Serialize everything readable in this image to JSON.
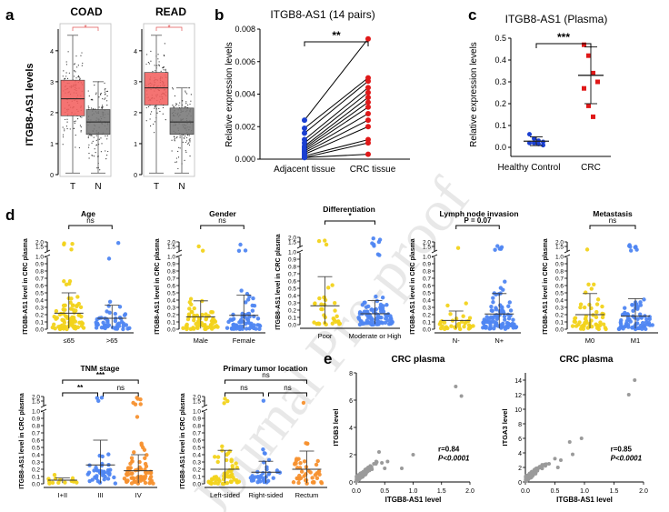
{
  "panel_letters": [
    "a",
    "b",
    "c",
    "d",
    "e"
  ],
  "watermark": "Journal Pre-proof",
  "colors": {
    "red": "#f2605f",
    "gray": "#777777",
    "yellow": "#f2d31b",
    "blue": "#4f86f2",
    "orange": "#f7912f",
    "darkblue": "#1a3fd1",
    "darkred": "#e01818",
    "scatter": "#9a9a9a"
  },
  "chart_data": [
    {
      "id": "a-coad",
      "type": "box",
      "title": "COAD",
      "ylabel": "ITGB8-AS1 levels",
      "categories": [
        "T",
        "N"
      ],
      "yticks": [
        "0",
        "1",
        "2",
        "3",
        "4"
      ],
      "ylim": [
        0,
        4.7
      ],
      "significance": "*",
      "boxes": [
        {
          "min": 0.05,
          "q1": 1.9,
          "median": 2.45,
          "q3": 3.05,
          "max": 4.5,
          "color": "#f2605f"
        },
        {
          "min": 0.05,
          "q1": 1.3,
          "median": 1.7,
          "q3": 2.1,
          "max": 3.0,
          "color": "#777777"
        }
      ]
    },
    {
      "id": "a-read",
      "type": "box",
      "title": "READ",
      "categories": [
        "T",
        "N"
      ],
      "yticks": [
        "0",
        "1",
        "2",
        "3",
        "4"
      ],
      "ylim": [
        0,
        4.7
      ],
      "significance": "*",
      "boxes": [
        {
          "min": 0.05,
          "q1": 2.25,
          "median": 2.8,
          "q3": 3.3,
          "max": 4.5,
          "color": "#f2605f"
        },
        {
          "min": 0.05,
          "q1": 1.3,
          "median": 1.7,
          "q3": 2.15,
          "max": 2.8,
          "color": "#777777"
        }
      ]
    },
    {
      "id": "b",
      "type": "line",
      "title": "ITGB8-AS1 (14 pairs)",
      "ylabel": "Relative expression levels",
      "categories": [
        "Adjacent tissue",
        "CRC tissue"
      ],
      "yticks": [
        "0.000",
        "0.002",
        "0.004",
        "0.006",
        "0.008"
      ],
      "ylim": [
        0,
        0.008
      ],
      "significance": "**",
      "pairs": [
        [
          0.0024,
          0.0074
        ],
        [
          0.0019,
          0.005
        ],
        [
          0.0016,
          0.0048
        ],
        [
          0.0012,
          0.0044
        ],
        [
          0.001,
          0.0041
        ],
        [
          0.0008,
          0.0038
        ],
        [
          0.0007,
          0.0035
        ],
        [
          0.0006,
          0.0032
        ],
        [
          0.0005,
          0.0028
        ],
        [
          0.0004,
          0.0024
        ],
        [
          0.0003,
          0.002
        ],
        [
          0.0002,
          0.0012
        ],
        [
          0.0001,
          0.001
        ],
        [
          0.0001,
          0.0003
        ]
      ]
    },
    {
      "id": "c",
      "type": "scatter",
      "title": "ITGB8-AS1 (Plasma)",
      "ylabel": "Relative expression levels",
      "categories": [
        "Healthy Control",
        "CRC"
      ],
      "yticks": [
        "0.0",
        "0.1",
        "0.2",
        "0.3",
        "0.4",
        "0.5"
      ],
      "ylim": [
        0,
        0.5
      ],
      "significance": "***",
      "groups": [
        {
          "values": [
            0.06,
            0.04,
            0.03,
            0.025,
            0.02,
            0.02,
            0.015,
            0.01
          ],
          "mean": 0.028,
          "sd": 0.02,
          "color": "#1a3fd1"
        },
        {
          "values": [
            0.47,
            0.42,
            0.34,
            0.3,
            0.27,
            0.19,
            0.14
          ],
          "mean": 0.33,
          "sd": 0.13,
          "color": "#e01818"
        }
      ]
    },
    {
      "id": "d-age",
      "type": "scatter",
      "title": "Age",
      "ylabel": "ITGB8-AS1 level in CRC plasma",
      "categories": [
        "≤65",
        ">65"
      ],
      "significance": "ns",
      "groups": [
        {
          "mean": 0.22,
          "sd": 0.28,
          "color": "#f2d31b",
          "n": 80
        },
        {
          "mean": 0.15,
          "sd": 0.18,
          "color": "#4f86f2",
          "n": 50
        }
      ]
    },
    {
      "id": "d-gender",
      "type": "scatter",
      "title": "Gender",
      "ylabel": "ITGB8-AS1 level in CRC plasma",
      "categories": [
        "Male",
        "Female"
      ],
      "significance": "ns",
      "groups": [
        {
          "mean": 0.17,
          "sd": 0.22,
          "color": "#f2d31b",
          "n": 65
        },
        {
          "mean": 0.19,
          "sd": 0.28,
          "color": "#4f86f2",
          "n": 65
        }
      ]
    },
    {
      "id": "d-diff",
      "type": "scatter",
      "title": "Differentiation",
      "ylabel": "ITGB8-AS1 level in CRC plasma",
      "categories": [
        "Poor",
        "Moderate or High"
      ],
      "significance": "*",
      "groups": [
        {
          "mean": 0.26,
          "sd": 0.4,
          "color": "#f2d31b",
          "n": 35
        },
        {
          "mean": 0.15,
          "sd": 0.18,
          "color": "#4f86f2",
          "n": 95
        }
      ]
    },
    {
      "id": "d-lymph",
      "type": "scatter",
      "title": "Lymph node invasion",
      "ylabel": "ITGB8-AS1 level in CRC plasma",
      "categories": [
        "N-",
        "N+"
      ],
      "significance": "P = 0.07",
      "groups": [
        {
          "mean": 0.12,
          "sd": 0.13,
          "color": "#f2d31b",
          "n": 35
        },
        {
          "mean": 0.21,
          "sd": 0.28,
          "color": "#4f86f2",
          "n": 95
        }
      ]
    },
    {
      "id": "d-met",
      "type": "scatter",
      "title": "Metastasis",
      "ylabel": "ITGB8-AS1 level in CRC plasma",
      "categories": [
        "M0",
        "M1"
      ],
      "significance": "ns",
      "groups": [
        {
          "mean": 0.2,
          "sd": 0.29,
          "color": "#f2d31b",
          "n": 55
        },
        {
          "mean": 0.18,
          "sd": 0.24,
          "color": "#4f86f2",
          "n": 75
        }
      ]
    },
    {
      "id": "d-tnm",
      "type": "scatter",
      "title": "TNM stage",
      "ylabel": "ITGB8-AS1 level in CRC plasma",
      "categories": [
        "I+II",
        "III",
        "IV"
      ],
      "comparisons": [
        {
          "from": 0,
          "to": 2,
          "label": "***"
        },
        {
          "from": 0,
          "to": 1,
          "label": "**"
        },
        {
          "from": 1,
          "to": 2,
          "label": "ns"
        }
      ],
      "groups": [
        {
          "mean": 0.05,
          "sd": 0.03,
          "color": "#f2d31b",
          "n": 14
        },
        {
          "mean": 0.26,
          "sd": 0.34,
          "color": "#4f86f2",
          "n": 40
        },
        {
          "mean": 0.18,
          "sd": 0.22,
          "color": "#f7912f",
          "n": 75
        }
      ]
    },
    {
      "id": "d-loc",
      "type": "scatter",
      "title": "Primary tumor location",
      "ylabel": "ITGB8-AS1 level in CRC plasma",
      "categories": [
        "Left-sided",
        "Right-sided",
        "Rectum"
      ],
      "comparisons": [
        {
          "from": 0,
          "to": 2,
          "label": "ns"
        },
        {
          "from": 0,
          "to": 1,
          "label": "ns"
        },
        {
          "from": 1,
          "to": 2,
          "label": "ns"
        }
      ],
      "groups": [
        {
          "mean": 0.2,
          "sd": 0.26,
          "color": "#f2d31b",
          "n": 60
        },
        {
          "mean": 0.16,
          "sd": 0.15,
          "color": "#4f86f2",
          "n": 35
        },
        {
          "mean": 0.2,
          "sd": 0.25,
          "color": "#f7912f",
          "n": 45
        }
      ]
    },
    {
      "id": "e1",
      "type": "scatter",
      "title": "CRC plasma",
      "xlabel": "ITGB8-AS1 level",
      "ylabel": "ITGB3 level",
      "xticks": [
        "0.0",
        "0.5",
        "1.0",
        "1.5",
        "2.0"
      ],
      "yticks": [
        "0",
        "2",
        "4",
        "6",
        "8"
      ],
      "xlim": [
        0,
        2
      ],
      "ylim": [
        0,
        8
      ],
      "stat_r": "r=0.84",
      "stat_p": "P<0.0001",
      "outliers": [
        [
          1.75,
          7.0
        ],
        [
          1.85,
          6.3
        ],
        [
          1.0,
          2.0
        ],
        [
          0.55,
          1.5
        ],
        [
          0.45,
          1.4
        ],
        [
          0.35,
          1.5
        ],
        [
          0.4,
          2.2
        ],
        [
          0.8,
          1.0
        ],
        [
          0.5,
          1.0
        ]
      ]
    },
    {
      "id": "e2",
      "type": "scatter",
      "title": "CRC plasma",
      "xlabel": "ITGB8-AS1 level",
      "ylabel": "ITGA3 level",
      "xticks": [
        "0.0",
        "0.5",
        "1.0",
        "1.5",
        "2.0"
      ],
      "yticks": [
        "0",
        "2",
        "4",
        "6",
        "8",
        "10",
        "12",
        "14"
      ],
      "xlim": [
        0,
        2
      ],
      "ylim": [
        0,
        15
      ],
      "stat_r": "r=0.85",
      "stat_p": "P<0.0001",
      "outliers": [
        [
          1.85,
          14.0
        ],
        [
          1.75,
          12.0
        ],
        [
          0.95,
          6.0
        ],
        [
          0.75,
          5.5
        ],
        [
          0.8,
          3.8
        ],
        [
          0.6,
          3.0
        ],
        [
          0.5,
          3.2
        ],
        [
          0.55,
          2.0
        ],
        [
          0.4,
          2.5
        ]
      ]
    }
  ],
  "shared_yticks_d": [
    "0.0",
    "0.1",
    "0.2",
    "0.3",
    "0.4",
    "0.5",
    "0.6",
    "0.7",
    "0.8",
    "0.9",
    "1.0",
    "1.5",
    "2.0"
  ]
}
